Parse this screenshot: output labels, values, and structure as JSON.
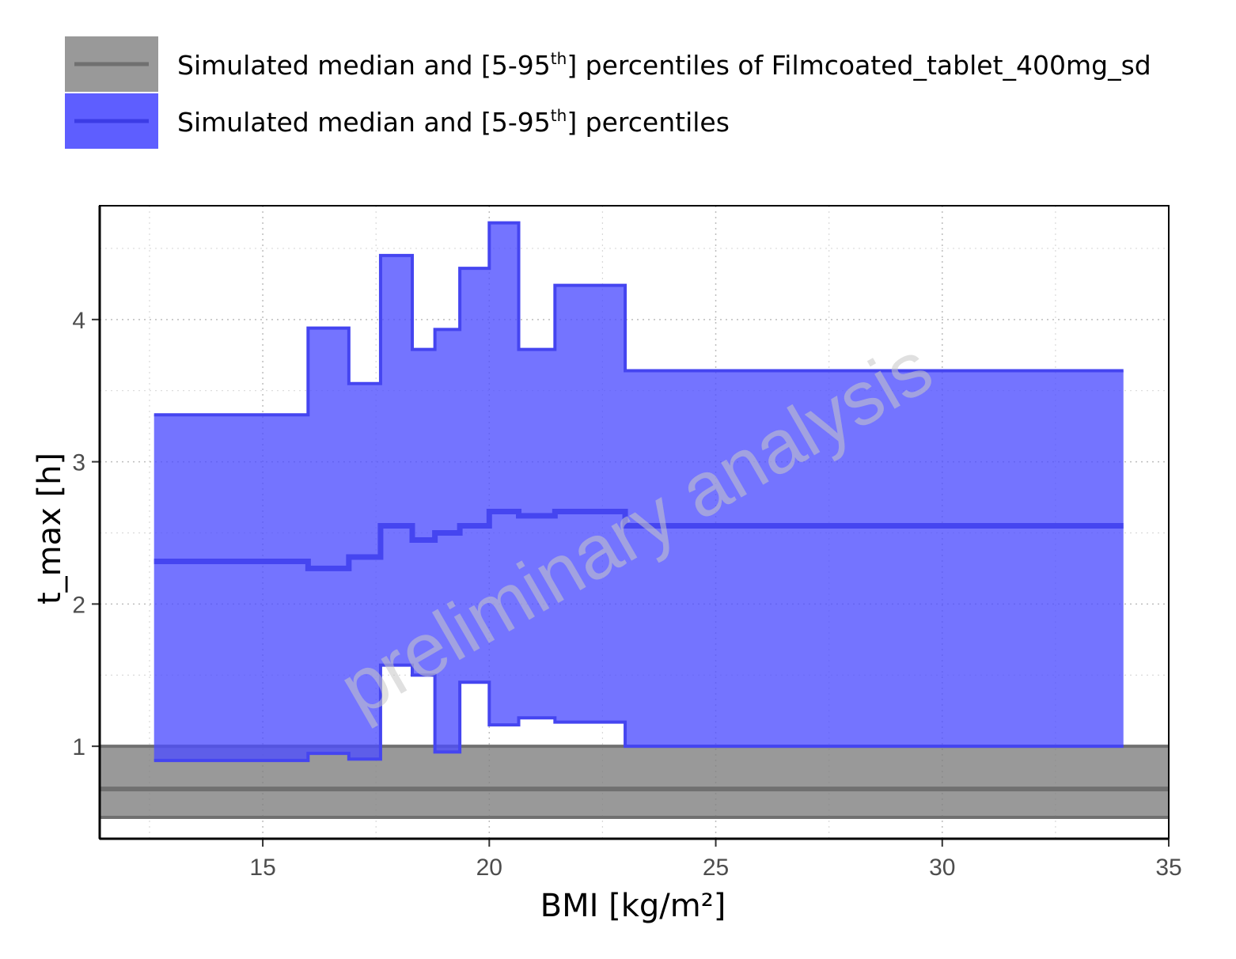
{
  "legend": {
    "items": [
      {
        "label_main": "Simulated median and [5-95",
        "label_sup": "th",
        "label_end": "] percentiles of Filmcoated_tablet_400mg_sd",
        "color": "#808080"
      },
      {
        "label_main": "Simulated median and [5-95",
        "label_sup": "th",
        "label_end": "] percentiles",
        "color": "#4d4dff"
      }
    ]
  },
  "watermark": "preliminary analysis",
  "chart_data": {
    "type": "area",
    "xlabel": "BMI [kg/m²]",
    "ylabel": "t_max [h]",
    "xlim": [
      11.4,
      35
    ],
    "ylim": [
      0.35,
      4.8
    ],
    "x_ticks": [
      15,
      20,
      25,
      30,
      35
    ],
    "y_ticks": [
      1,
      2,
      3,
      4
    ],
    "grid": true,
    "legend_position": "top",
    "reference_band": {
      "x_range": [
        11.4,
        35
      ],
      "median": 0.7,
      "p5": 0.5,
      "p95": 1.0,
      "color": "#808080"
    },
    "stepped_band": {
      "color": "#4d4dff",
      "bins": [
        {
          "x_start": 12.6,
          "x_end": 16.0,
          "median": 2.3,
          "p5": 0.9,
          "p95": 3.33
        },
        {
          "x_start": 16.0,
          "x_end": 16.9,
          "median": 2.25,
          "p5": 0.95,
          "p95": 3.94
        },
        {
          "x_start": 16.9,
          "x_end": 17.6,
          "median": 2.33,
          "p5": 0.91,
          "p95": 3.55
        },
        {
          "x_start": 17.6,
          "x_end": 18.3,
          "median": 2.55,
          "p5": 1.57,
          "p95": 4.45
        },
        {
          "x_start": 18.3,
          "x_end": 18.8,
          "median": 2.45,
          "p5": 1.5,
          "p95": 3.79
        },
        {
          "x_start": 18.8,
          "x_end": 19.35,
          "median": 2.5,
          "p5": 0.96,
          "p95": 3.93
        },
        {
          "x_start": 19.35,
          "x_end": 20.0,
          "median": 2.55,
          "p5": 1.45,
          "p95": 4.36
        },
        {
          "x_start": 20.0,
          "x_end": 20.65,
          "median": 2.65,
          "p5": 1.15,
          "p95": 4.68
        },
        {
          "x_start": 20.65,
          "x_end": 21.45,
          "median": 2.62,
          "p5": 1.2,
          "p95": 3.79
        },
        {
          "x_start": 21.45,
          "x_end": 23.0,
          "median": 2.65,
          "p5": 1.17,
          "p95": 4.24
        },
        {
          "x_start": 23.0,
          "x_end": 34.0,
          "median": 2.55,
          "p5": 1.0,
          "p95": 3.64
        }
      ]
    }
  }
}
